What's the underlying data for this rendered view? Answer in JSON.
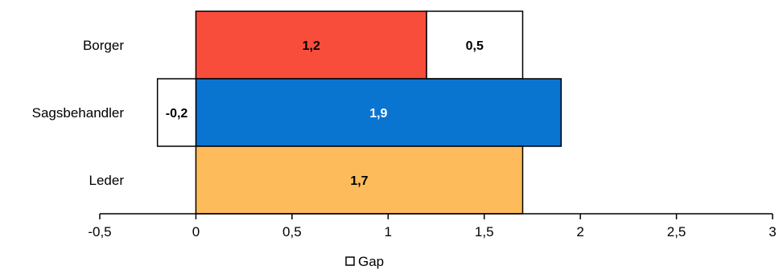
{
  "chart_data": {
    "type": "bar",
    "orientation": "horizontal",
    "categories": [
      "Borger",
      "Sagsbehandler",
      "Leder"
    ],
    "series": [
      {
        "name": "",
        "values": [
          1.2,
          1.9,
          1.7
        ],
        "labels": [
          "1,2",
          "1,9",
          "1,7"
        ],
        "colors": [
          "#f94d3b",
          "#0a74d1",
          "#fdbb5b"
        ],
        "label_colors": [
          "#000000",
          "#ffffff",
          "#000000"
        ]
      },
      {
        "name": "Gap",
        "values": [
          0.5,
          -0.2,
          null
        ],
        "labels": [
          "0,5",
          "-0,2",
          ""
        ],
        "color": "#ffffff",
        "label_color": "#000000"
      }
    ],
    "xlim": [
      -0.5,
      3
    ],
    "xticks": [
      -0.5,
      0,
      0.5,
      1,
      1.5,
      2,
      2.5,
      3
    ],
    "xtick_labels": [
      "-0,5",
      "0",
      "0,5",
      "1",
      "1,5",
      "2",
      "2,5",
      "3"
    ],
    "grid": false,
    "legend": {
      "position": "bottom",
      "entries": [
        "Gap"
      ]
    }
  }
}
